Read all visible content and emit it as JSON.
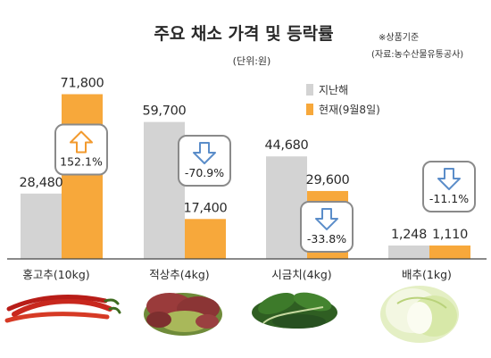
{
  "title": "주요 채소 가격 및 등락률",
  "unit_note": "(단위:원)",
  "note_main": "※상품기준",
  "note_source": "(자료:농수산물유통공사)",
  "colors": {
    "previous": "#d3d3d3",
    "current": "#f7a83b",
    "up": "#f29a2e",
    "down": "#5b8dc9"
  },
  "chart_data": {
    "type": "bar",
    "categories": [
      "홍고추(10kg)",
      "적상추(4kg)",
      "시금치(4kg)",
      "배추(1kg)"
    ],
    "series": [
      {
        "name": "지난해",
        "values": [
          28480,
          59700,
          44680,
          1248
        ],
        "labels": [
          "28,480",
          "59,700",
          "44,680",
          "1,248"
        ]
      },
      {
        "name": "현재(9월8일)",
        "values": [
          71800,
          17400,
          29600,
          1110
        ],
        "labels": [
          "71,800",
          "17,400",
          "29,600",
          "1,110"
        ]
      }
    ],
    "changes": [
      {
        "label": "152.1%",
        "direction": "up"
      },
      {
        "label": "-70.9%",
        "direction": "down"
      },
      {
        "label": "-33.8%",
        "direction": "down"
      },
      {
        "label": "-11.1%",
        "direction": "down"
      }
    ],
    "ylim": [
      0,
      72000
    ]
  },
  "pictures": [
    {
      "icon": "red-pepper-icon"
    },
    {
      "icon": "red-lettuce-icon"
    },
    {
      "icon": "spinach-icon"
    },
    {
      "icon": "napa-cabbage-icon"
    }
  ]
}
